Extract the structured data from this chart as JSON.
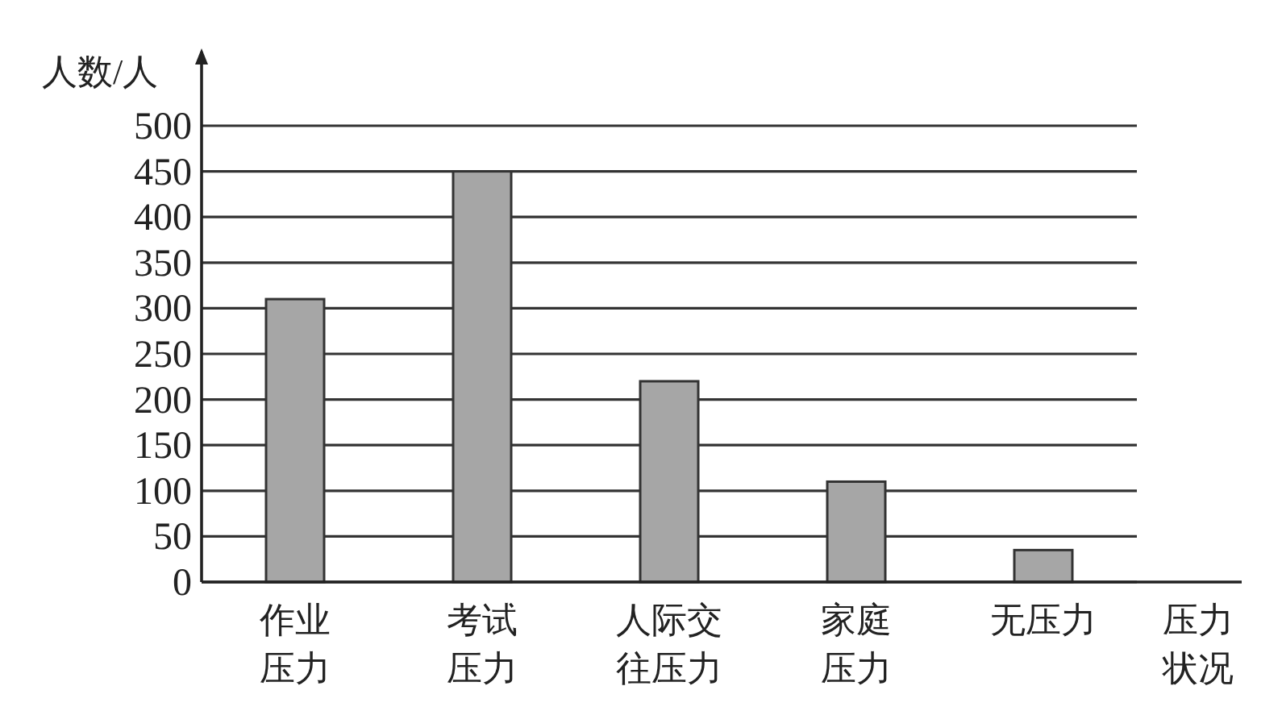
{
  "chart_data": {
    "type": "bar",
    "xlabel": "压力状况",
    "ylabel": "人数/人",
    "categories": [
      "作业压力",
      "考试压力",
      "人际交往压力",
      "家庭压力",
      "无压力"
    ],
    "values": [
      310,
      450,
      220,
      110,
      35
    ],
    "color": "#a6a6a6",
    "ylim": [
      0,
      500
    ],
    "yticks": [
      0,
      50,
      100,
      150,
      200,
      250,
      300,
      350,
      400,
      450,
      500
    ],
    "grid": "y"
  }
}
